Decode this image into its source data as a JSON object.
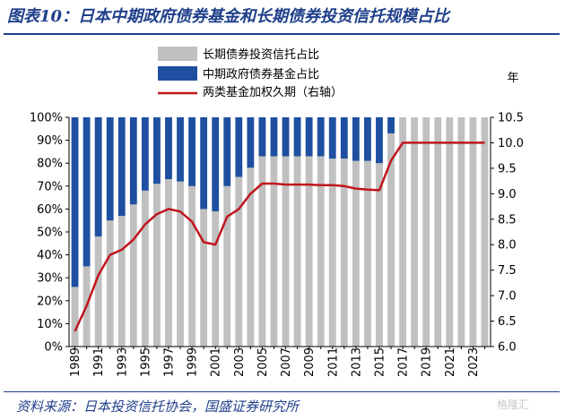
{
  "title": "图表10：日本中期政府债券基金和长期债券投资信托规模占比",
  "source": "资料来源：日本投资信托协会，国盛证券研究所",
  "watermark": "格隆汇",
  "colors": {
    "long_term": "#c0c0c0",
    "mid_term": "#1f4fa0",
    "duration": "#c0161c",
    "brand": "#1f3f8a"
  },
  "chart_data": {
    "type": "bar",
    "stacked": true,
    "legend_position": "top-center",
    "categories": [
      1989,
      1990,
      1991,
      1992,
      1993,
      1994,
      1995,
      1996,
      1997,
      1998,
      1999,
      2000,
      2001,
      2002,
      2003,
      2004,
      2005,
      2006,
      2007,
      2008,
      2009,
      2010,
      2011,
      2012,
      2013,
      2014,
      2015,
      2016,
      2017,
      2018,
      2019,
      2020,
      2021,
      2022,
      2023,
      2024
    ],
    "x_tick_labels": [
      "1989",
      "1991",
      "1993",
      "1995",
      "1997",
      "1999",
      "2001",
      "2003",
      "2005",
      "2007",
      "2009",
      "2011",
      "2013",
      "2015",
      "2017",
      "2019",
      "2021",
      "2023"
    ],
    "y_left_ticks": [
      "0%",
      "10%",
      "20%",
      "30%",
      "40%",
      "50%",
      "60%",
      "70%",
      "80%",
      "90%",
      "100%"
    ],
    "y_left_range": [
      0,
      100
    ],
    "y_right_ticks": [
      "6.0",
      "6.5",
      "7.0",
      "7.5",
      "8.0",
      "8.5",
      "9.0",
      "9.5",
      "10.0",
      "10.5"
    ],
    "y_right_range": [
      6.0,
      10.5
    ],
    "y_right_unit": "年",
    "series": [
      {
        "name": "长期债券投资信托占比",
        "kind": "bar",
        "values": [
          26,
          35,
          48,
          55,
          57,
          62,
          68,
          71,
          73,
          72,
          70,
          60,
          59,
          70,
          74,
          78,
          83,
          83,
          83,
          83,
          83,
          83,
          82,
          82,
          81,
          81,
          80,
          93,
          100,
          100,
          100,
          100,
          100,
          100,
          100,
          100
        ]
      },
      {
        "name": "中期政府债券基金占比",
        "kind": "bar",
        "values": [
          74,
          65,
          52,
          45,
          43,
          38,
          32,
          29,
          27,
          28,
          30,
          40,
          41,
          30,
          26,
          22,
          17,
          17,
          17,
          17,
          17,
          17,
          18,
          18,
          19,
          19,
          20,
          7,
          0,
          0,
          0,
          0,
          0,
          0,
          0,
          0
        ]
      },
      {
        "name": "两类基金加权久期（右轴）",
        "kind": "line",
        "axis": "right",
        "values": [
          6.3,
          6.8,
          7.4,
          7.8,
          7.9,
          8.1,
          8.4,
          8.6,
          8.7,
          8.65,
          8.45,
          8.05,
          8.0,
          8.55,
          8.7,
          9.0,
          9.2,
          9.2,
          9.18,
          9.18,
          9.18,
          9.17,
          9.17,
          9.15,
          9.1,
          9.08,
          9.07,
          9.65,
          10.0,
          10.0,
          10.0,
          10.0,
          10.0,
          10.0,
          10.0,
          10.0
        ]
      }
    ]
  }
}
